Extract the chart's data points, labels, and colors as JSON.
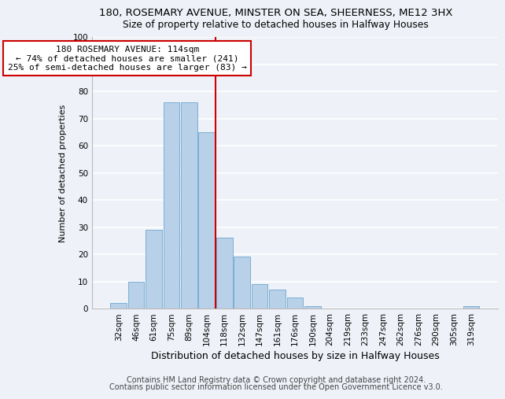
{
  "title": "180, ROSEMARY AVENUE, MINSTER ON SEA, SHEERNESS, ME12 3HX",
  "subtitle": "Size of property relative to detached houses in Halfway Houses",
  "xlabel": "Distribution of detached houses by size in Halfway Houses",
  "ylabel": "Number of detached properties",
  "bin_labels": [
    "32sqm",
    "46sqm",
    "61sqm",
    "75sqm",
    "89sqm",
    "104sqm",
    "118sqm",
    "132sqm",
    "147sqm",
    "161sqm",
    "176sqm",
    "190sqm",
    "204sqm",
    "219sqm",
    "233sqm",
    "247sqm",
    "262sqm",
    "276sqm",
    "290sqm",
    "305sqm",
    "319sqm"
  ],
  "bar_values": [
    2,
    10,
    29,
    76,
    76,
    65,
    26,
    19,
    9,
    7,
    4,
    1,
    0,
    0,
    0,
    0,
    0,
    0,
    0,
    0,
    1
  ],
  "bar_color": "#b8d0e8",
  "bar_edge_color": "#7aafd4",
  "vline_x_index": 6,
  "vline_color": "#cc0000",
  "ylim": [
    0,
    100
  ],
  "yticks": [
    0,
    10,
    20,
    30,
    40,
    50,
    60,
    70,
    80,
    90,
    100
  ],
  "annotation_title": "180 ROSEMARY AVENUE: 114sqm",
  "annotation_line1": "← 74% of detached houses are smaller (241)",
  "annotation_line2": "25% of semi-detached houses are larger (83) →",
  "footer1": "Contains HM Land Registry data © Crown copyright and database right 2024.",
  "footer2": "Contains public sector information licensed under the Open Government Licence v3.0.",
  "background_color": "#eef2f8",
  "grid_color": "#ffffff",
  "title_fontsize": 9.5,
  "subtitle_fontsize": 8.8,
  "xlabel_fontsize": 9,
  "ylabel_fontsize": 8,
  "tick_fontsize": 7.5,
  "footer_fontsize": 7,
  "ann_fontsize": 8
}
